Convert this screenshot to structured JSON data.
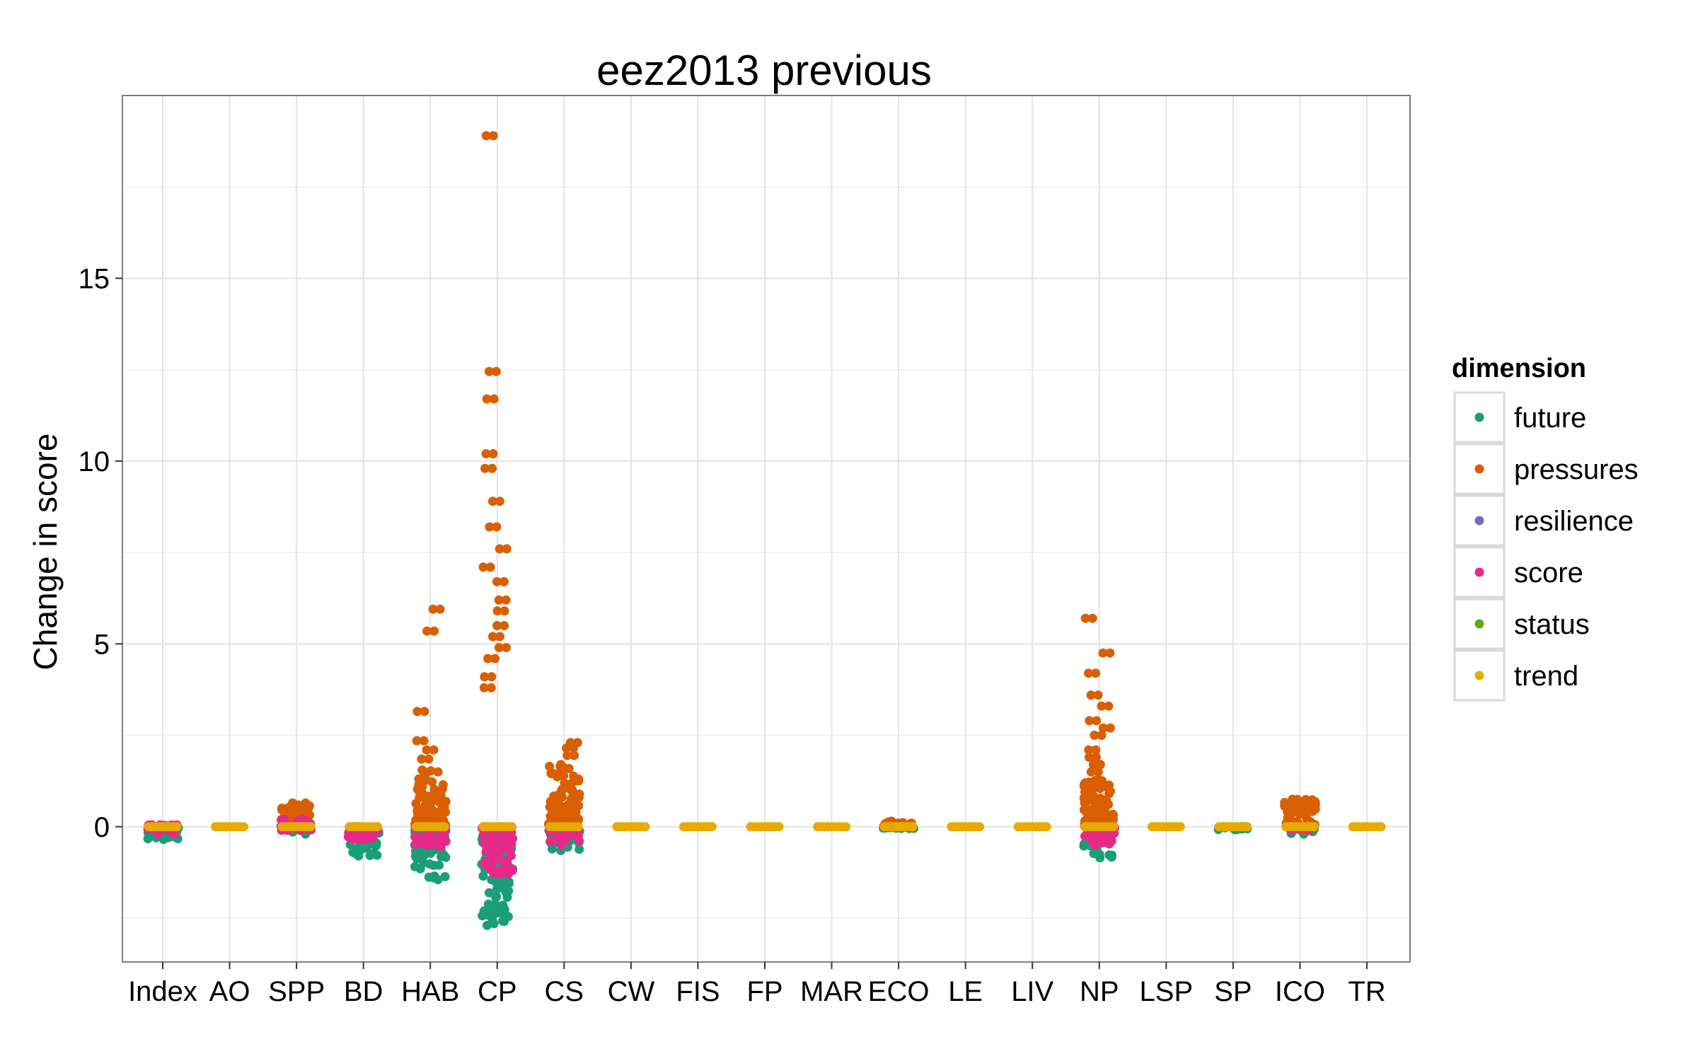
{
  "chart_data": {
    "type": "scatter",
    "title": "eez2013 previous",
    "xlabel": "",
    "ylabel": "Change in score",
    "ylim": [
      -3.7,
      20
    ],
    "yticks": [
      0,
      5,
      10,
      15
    ],
    "grid": true,
    "categories": [
      "Index",
      "AO",
      "SPP",
      "BD",
      "HAB",
      "CP",
      "CS",
      "CW",
      "FIS",
      "FP",
      "MAR",
      "ECO",
      "LE",
      "LIV",
      "NP",
      "LSP",
      "SP",
      "ICO",
      "TR"
    ],
    "legend": {
      "title": "dimension",
      "position": "right",
      "entries": [
        {
          "name": "future",
          "color": "#1B9E77"
        },
        {
          "name": "pressures",
          "color": "#D95F02"
        },
        {
          "name": "resilience",
          "color": "#7570B3"
        },
        {
          "name": "score",
          "color": "#E7298A"
        },
        {
          "name": "status",
          "color": "#66A61E"
        },
        {
          "name": "trend",
          "color": "#E6AB02"
        }
      ]
    },
    "series": [
      {
        "name": "future",
        "ranges": [
          {
            "category": "Index",
            "min": -0.35,
            "max": 0.0
          },
          {
            "category": "SPP",
            "min": -0.2,
            "max": 0.1
          },
          {
            "category": "BD",
            "min": -0.8,
            "max": 0.0
          },
          {
            "category": "HAB",
            "min": -1.45,
            "max": -0.1
          },
          {
            "category": "CP",
            "min": -2.7,
            "max": -0.3
          },
          {
            "category": "CS",
            "min": -0.65,
            "max": -0.1
          },
          {
            "category": "ECO",
            "min": -0.05,
            "max": 0.0
          },
          {
            "category": "NP",
            "min": -0.85,
            "max": -0.05
          },
          {
            "category": "SP",
            "min": -0.08,
            "max": 0.0
          },
          {
            "category": "ICO",
            "min": -0.2,
            "max": 0.0
          }
        ]
      },
      {
        "name": "pressures",
        "ranges": [
          {
            "category": "SPP",
            "min": -0.05,
            "max": 0.65
          },
          {
            "category": "HAB",
            "min": 0.0,
            "max": 1.55
          },
          {
            "category": "CS",
            "min": 0.0,
            "max": 1.7
          },
          {
            "category": "ECO",
            "min": 0.0,
            "max": 0.15
          },
          {
            "category": "NP",
            "min": 0.0,
            "max": 1.3
          },
          {
            "category": "ICO",
            "min": -0.1,
            "max": 0.75
          }
        ],
        "outliers": [
          {
            "category": "HAB",
            "y": 5.95
          },
          {
            "category": "HAB",
            "y": 5.35
          },
          {
            "category": "HAB",
            "y": 3.15
          },
          {
            "category": "HAB",
            "y": 2.35
          },
          {
            "category": "HAB",
            "y": 2.1
          },
          {
            "category": "HAB",
            "y": 1.85
          },
          {
            "category": "CP",
            "y": 18.9
          },
          {
            "category": "CP",
            "y": 12.45
          },
          {
            "category": "CP",
            "y": 11.7
          },
          {
            "category": "CP",
            "y": 10.2
          },
          {
            "category": "CP",
            "y": 9.8
          },
          {
            "category": "CP",
            "y": 8.9
          },
          {
            "category": "CP",
            "y": 8.2
          },
          {
            "category": "CP",
            "y": 7.6
          },
          {
            "category": "CP",
            "y": 7.1
          },
          {
            "category": "CP",
            "y": 6.7
          },
          {
            "category": "CP",
            "y": 6.2
          },
          {
            "category": "CP",
            "y": 5.9
          },
          {
            "category": "CP",
            "y": 5.5
          },
          {
            "category": "CP",
            "y": 5.2
          },
          {
            "category": "CP",
            "y": 4.9
          },
          {
            "category": "CP",
            "y": 4.6
          },
          {
            "category": "CP",
            "y": 4.1
          },
          {
            "category": "CP",
            "y": 3.8
          },
          {
            "category": "CS",
            "y": 2.3
          },
          {
            "category": "CS",
            "y": 2.15
          },
          {
            "category": "CS",
            "y": 1.95
          },
          {
            "category": "NP",
            "y": 5.7
          },
          {
            "category": "NP",
            "y": 4.75
          },
          {
            "category": "NP",
            "y": 4.2
          },
          {
            "category": "NP",
            "y": 3.6
          },
          {
            "category": "NP",
            "y": 3.3
          },
          {
            "category": "NP",
            "y": 2.9
          },
          {
            "category": "NP",
            "y": 2.7
          },
          {
            "category": "NP",
            "y": 2.5
          },
          {
            "category": "NP",
            "y": 2.1
          },
          {
            "category": "NP",
            "y": 1.9
          },
          {
            "category": "NP",
            "y": 1.7
          },
          {
            "category": "NP",
            "y": 1.5
          }
        ]
      },
      {
        "name": "score",
        "ranges": [
          {
            "category": "Index",
            "min": -0.2,
            "max": 0.05
          },
          {
            "category": "SPP",
            "min": -0.1,
            "max": 0.2
          },
          {
            "category": "BD",
            "min": -0.35,
            "max": 0.0
          },
          {
            "category": "HAB",
            "min": -0.55,
            "max": 0.0
          },
          {
            "category": "CP",
            "min": -1.3,
            "max": 0.0
          },
          {
            "category": "CS",
            "min": -0.5,
            "max": 0.0
          },
          {
            "category": "NP",
            "min": -0.5,
            "max": 0.0
          },
          {
            "category": "ICO",
            "min": -0.1,
            "max": 0.0
          }
        ]
      },
      {
        "name": "trend",
        "values": {
          "Index": 0,
          "AO": 0,
          "SPP": 0,
          "BD": 0,
          "HAB": 0,
          "CP": 0,
          "CS": 0,
          "CW": 0,
          "FIS": 0,
          "FP": 0,
          "MAR": 0,
          "ECO": 0,
          "LE": 0,
          "LIV": 0,
          "NP": 0,
          "LSP": 0,
          "SP": 0,
          "ICO": 0,
          "TR": 0
        }
      }
    ]
  }
}
